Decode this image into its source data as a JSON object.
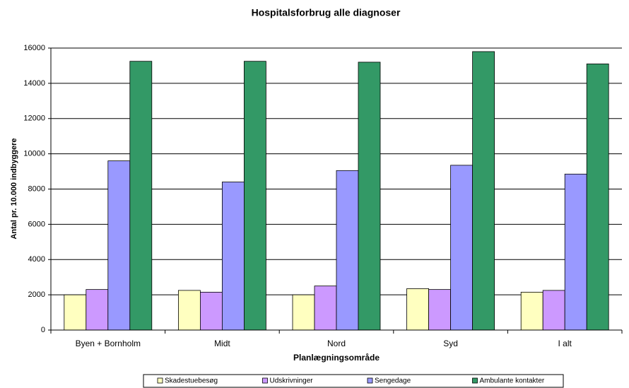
{
  "chart_data": {
    "type": "bar",
    "title": "Hospitalsforbrug alle diagnoser",
    "x_label": "Planlægningsområde",
    "y_label": "Antal pr. 10.000 indbyggere",
    "categories": [
      "Byen + Bornholm",
      "Midt",
      "Nord",
      "Syd",
      "I alt"
    ],
    "series": [
      {
        "name": "Skadestuebesøg",
        "color": "#ffffc0",
        "values": [
          2000,
          2250,
          2000,
          2350,
          2150
        ]
      },
      {
        "name": "Udskrivninger",
        "color": "#cc99ff",
        "values": [
          2300,
          2150,
          2500,
          2300,
          2250
        ]
      },
      {
        "name": "Sengedage",
        "color": "#9999ff",
        "values": [
          9600,
          8400,
          9050,
          9350,
          8850
        ]
      },
      {
        "name": "Ambulante kontakter",
        "color": "#339966",
        "values": [
          15250,
          15250,
          15200,
          15800,
          15100
        ]
      }
    ],
    "ylim": [
      0,
      16000
    ],
    "yticks": [
      0,
      2000,
      4000,
      6000,
      8000,
      10000,
      12000,
      14000,
      16000
    ],
    "grid": true,
    "legend": "bottom"
  }
}
